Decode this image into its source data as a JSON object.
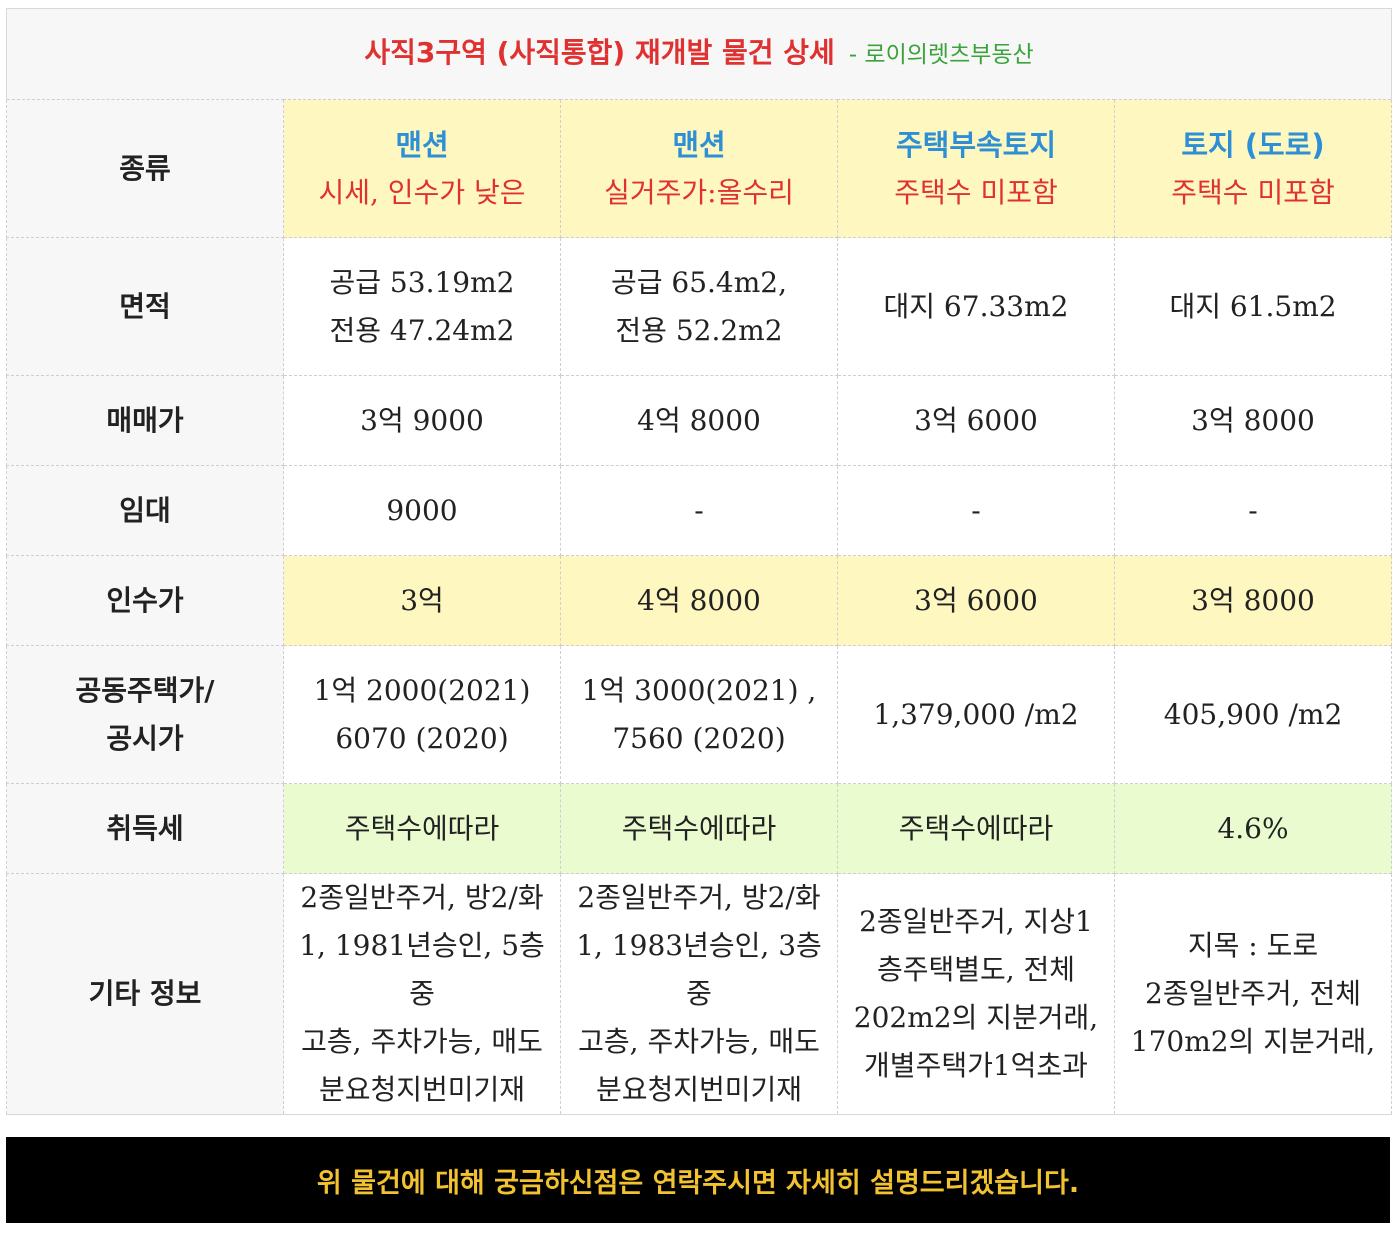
{
  "title": {
    "main": "사직3구역 (사직통합) 재개발 물건 상세",
    "sub": "- 로이의렛츠부동산"
  },
  "rows": {
    "type": {
      "label": "종류",
      "cells": [
        {
          "name": "맨션",
          "note": "시세, 인수가 낮은"
        },
        {
          "name": "맨션",
          "note": "실거주가:올수리"
        },
        {
          "name": "주택부속토지",
          "note": "주택수 미포함"
        },
        {
          "name": "토지 (도로)",
          "note": "주택수 미포함"
        }
      ]
    },
    "area": {
      "label": "면적",
      "cells": [
        [
          "공급 53.19m2",
          "전용 47.24m2"
        ],
        [
          "공급 65.4m2,",
          "전용 52.2m2"
        ],
        [
          "대지 67.33m2"
        ],
        [
          "대지 61.5m2"
        ]
      ]
    },
    "price": {
      "label": "매매가",
      "cells": [
        "3억 9000",
        "4억 8000",
        "3억 6000",
        "3억 8000"
      ]
    },
    "lease": {
      "label": "임대",
      "cells": [
        "9000",
        "-",
        "-",
        "-"
      ]
    },
    "takeover": {
      "label": "인수가",
      "cells": [
        "3억",
        "4억 8000",
        "3억 6000",
        "3억 8000"
      ]
    },
    "public": {
      "label": [
        "공동주택가/",
        "공시가"
      ],
      "cells": [
        [
          "1억 2000(2021)",
          "6070 (2020)"
        ],
        [
          "1억 3000(2021) ,",
          "7560 (2020)"
        ],
        [
          "1,379,000 /m2"
        ],
        [
          "405,900 /m2"
        ]
      ]
    },
    "tax": {
      "label": "취득세",
      "cells": [
        "주택수에따라",
        "주택수에따라",
        "주택수에따라",
        "4.6%"
      ]
    },
    "etc": {
      "label": "기타 정보",
      "cells": [
        [
          "2종일반주거, 방2/화",
          "1, 1981년승인, 5층중",
          "고층, 주차가능, 매도",
          "분요청지번미기재"
        ],
        [
          "2종일반주거, 방2/화",
          "1, 1983년승인, 3층중",
          "고층, 주차가능, 매도",
          "분요청지번미기재"
        ],
        [
          "2종일반주거, 지상1",
          "층주택별도, 전체",
          "202m2의 지분거래,",
          "개별주택가1억초과"
        ],
        [
          "지목 : 도로",
          "2종일반주거, 전체",
          "170m2의 지분거래,"
        ]
      ]
    }
  },
  "banner": {
    "text": "위 물건에 대해 궁금하신점은 연락주시면 자세히 설명드리겠습니다."
  },
  "colors": {
    "label_blue": "#2d8fd5",
    "accent_red": "#e03131",
    "subtitle_green": "#3aa33a",
    "highlight_yellow": "#fff7c0",
    "highlight_green": "#eafbd0",
    "banner_bg": "#000000",
    "banner_text": "#f2c230"
  }
}
